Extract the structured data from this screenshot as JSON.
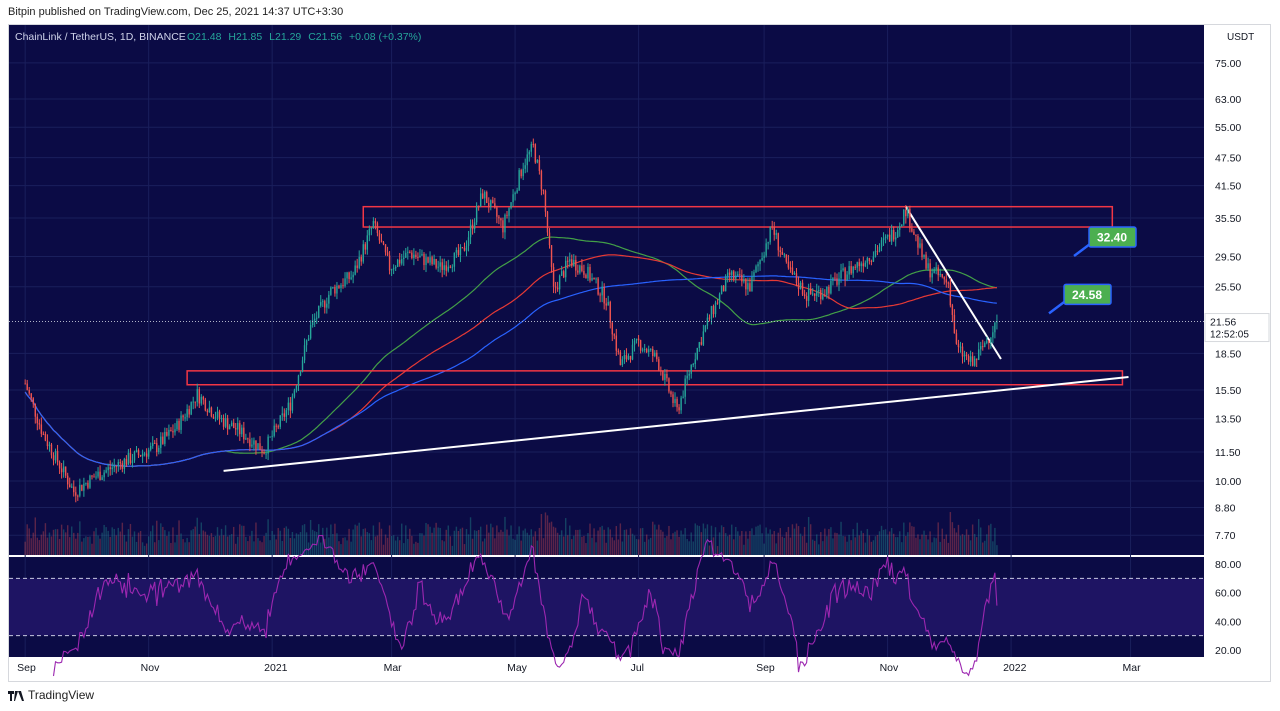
{
  "header": {
    "published": "Bitpin published on TradingView.com, Dec 25, 2021 14:37 UTC+3:30"
  },
  "legend": {
    "symbol": "ChainLink / TetherUS, 1D, BINANCE",
    "o": "O21.48",
    "h": "H21.85",
    "l": "L21.29",
    "c": "C21.56",
    "chg": "+0.08 (+0.37%)"
  },
  "footer": {
    "brand": "TradingView"
  },
  "colors": {
    "pane_bg": "#0b0b45",
    "grid": "#1a1f5c",
    "up": "#26a69a",
    "down": "#ef5350",
    "ma_green": "#43a047",
    "ma_red": "#e53935",
    "ma_blue": "#2962ff",
    "ma_olive": "#9e8a4a",
    "rsi": "#9c27b0",
    "rsi_band": "#1e1463",
    "zone": "#f23645",
    "label_green": "#4caf50",
    "label_border": "#2962ff"
  },
  "chart_data": {
    "type": "candlestick",
    "symbol": "LINK/USDT",
    "timeframe": "1D",
    "exchange": "BINANCE",
    "price_scale": "log",
    "currency": "USDT",
    "x_ticks": [
      "Sep",
      "Nov",
      "2021",
      "Mar",
      "May",
      "Jul",
      "Sep",
      "Nov",
      "2022",
      "Mar"
    ],
    "y_ticks": [
      "75.00",
      "63.00",
      "55.00",
      "47.50",
      "41.50",
      "35.50",
      "29.50",
      "25.50",
      "18.50",
      "15.50",
      "13.50",
      "11.50",
      "10.00",
      "8.80",
      "7.70"
    ],
    "last": {
      "price": "21.56",
      "countdown": "12:52:05"
    },
    "ohlc": {
      "open": 21.48,
      "high": 21.85,
      "low": 21.29,
      "close": 21.56,
      "change": 0.08,
      "change_pct": 0.37
    },
    "close_path": [
      [
        "2020-09-01",
        16.0
      ],
      [
        "2020-09-10",
        12.5
      ],
      [
        "2020-09-25",
        9.5
      ],
      [
        "2020-10-05",
        10.2
      ],
      [
        "2020-10-20",
        11.0
      ],
      [
        "2020-11-05",
        11.8
      ],
      [
        "2020-11-15",
        13.0
      ],
      [
        "2020-11-25",
        15.2
      ],
      [
        "2020-12-05",
        13.6
      ],
      [
        "2020-12-15",
        12.8
      ],
      [
        "2020-12-28",
        11.6
      ],
      [
        "2021-01-10",
        14.5
      ],
      [
        "2021-01-20",
        21.0
      ],
      [
        "2021-01-30",
        25.0
      ],
      [
        "2021-02-10",
        27.0
      ],
      [
        "2021-02-20",
        34.5
      ],
      [
        "2021-02-28",
        28.0
      ],
      [
        "2021-03-10",
        30.0
      ],
      [
        "2021-03-25",
        28.0
      ],
      [
        "2021-04-05",
        30.0
      ],
      [
        "2021-04-15",
        40.0
      ],
      [
        "2021-04-25",
        34.0
      ],
      [
        "2021-05-05",
        46.0
      ],
      [
        "2021-05-10",
        50.0
      ],
      [
        "2021-05-15",
        40.0
      ],
      [
        "2021-05-20",
        25.0
      ],
      [
        "2021-05-28",
        29.0
      ],
      [
        "2021-06-05",
        27.5
      ],
      [
        "2021-06-15",
        24.0
      ],
      [
        "2021-06-22",
        17.5
      ],
      [
        "2021-07-01",
        19.5
      ],
      [
        "2021-07-10",
        18.0
      ],
      [
        "2021-07-20",
        14.0
      ],
      [
        "2021-07-28",
        18.0
      ],
      [
        "2021-08-05",
        22.0
      ],
      [
        "2021-08-15",
        27.0
      ],
      [
        "2021-08-25",
        25.5
      ],
      [
        "2021-09-05",
        34.0
      ],
      [
        "2021-09-12",
        28.0
      ],
      [
        "2021-09-22",
        24.5
      ],
      [
        "2021-10-01",
        25.0
      ],
      [
        "2021-10-10",
        27.0
      ],
      [
        "2021-10-25",
        30.0
      ],
      [
        "2021-11-05",
        33.5
      ],
      [
        "2021-11-10",
        37.0
      ],
      [
        "2021-11-20",
        28.0
      ],
      [
        "2021-12-01",
        26.0
      ],
      [
        "2021-12-05",
        19.0
      ],
      [
        "2021-12-13",
        17.5
      ],
      [
        "2021-12-25",
        21.56
      ]
    ],
    "zones": [
      {
        "low": 34.0,
        "high": 37.5,
        "from": "2021-02-15",
        "to": "2022-02-20"
      },
      {
        "low": 15.9,
        "high": 17.0,
        "from": "2020-11-20",
        "to": "2022-02-25"
      }
    ],
    "trendlines": [
      {
        "from": [
          "2020-12-08",
          10.5
        ],
        "to": [
          "2022-02-28",
          16.5
        ]
      },
      {
        "from": [
          "2021-11-10",
          37.5
        ],
        "to": [
          "2021-12-27",
          18.0
        ]
      }
    ],
    "annotations": [
      {
        "text": "32.40",
        "price": 32.4
      },
      {
        "text": "24.58",
        "price": 24.58
      }
    ],
    "moving_averages": [
      {
        "color": "green",
        "end": 25.5
      },
      {
        "color": "red",
        "end": 25.5
      },
      {
        "color": "blue",
        "end": 24.5
      }
    ],
    "rsi": {
      "y_ticks": [
        "80.00",
        "60.00",
        "40.00",
        "20.00"
      ],
      "bands": [
        70,
        30
      ],
      "last": 51.0
    }
  }
}
